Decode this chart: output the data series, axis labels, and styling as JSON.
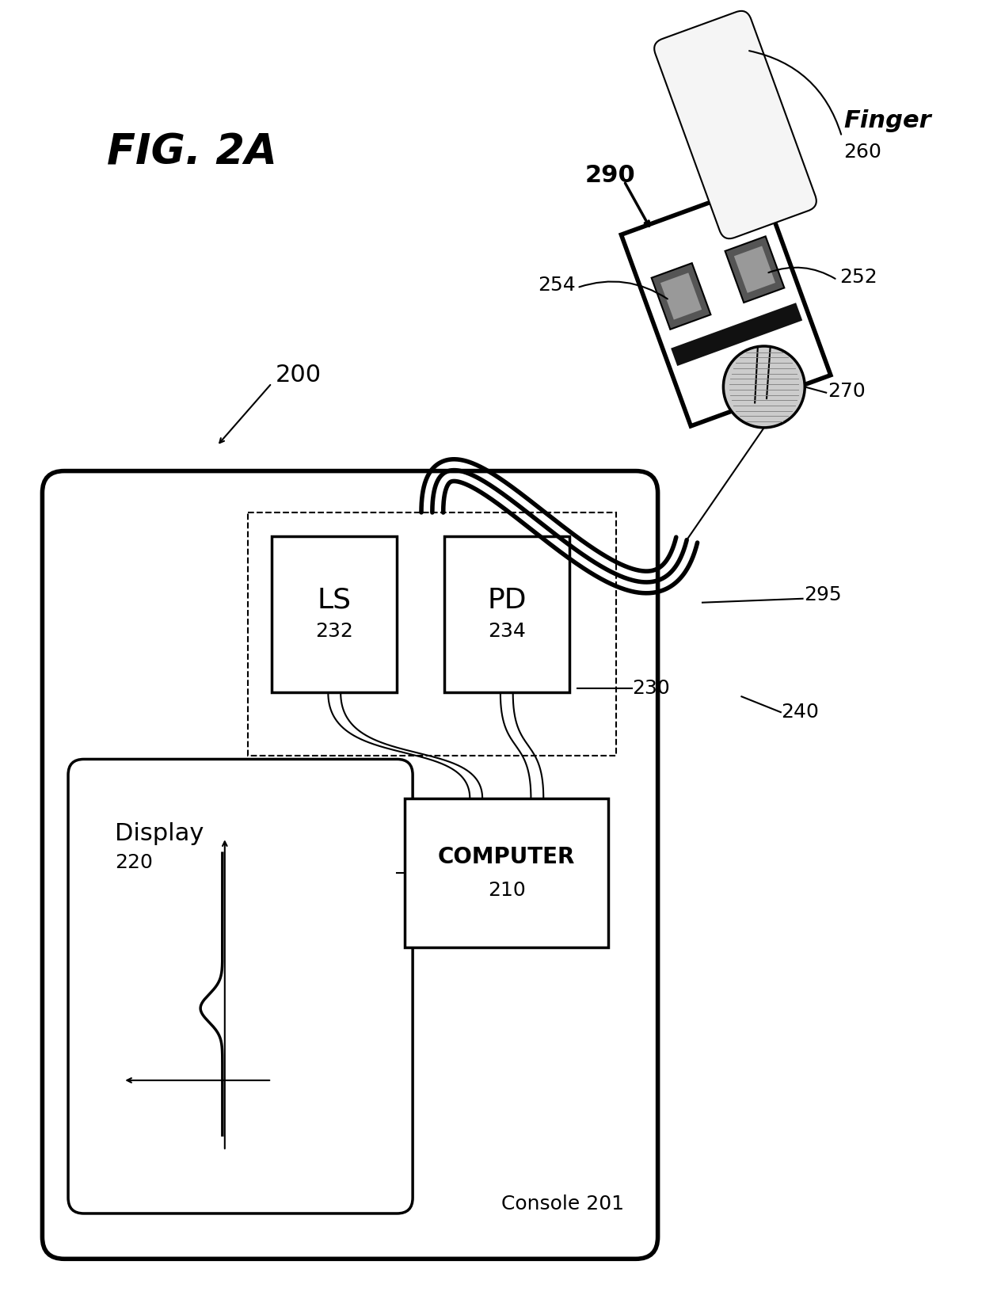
{
  "bg_color": "#ffffff",
  "line_color": "#000000",
  "fill_color": "#ffffff",
  "title": "FIG. 2A",
  "label_200": "200",
  "label_201": "Console 201",
  "label_210": "210",
  "label_220": "220",
  "label_230": "230",
  "label_232": "232",
  "label_234": "234",
  "label_240": "240",
  "label_252": "252",
  "label_254": "254",
  "label_260": "260",
  "label_270": "270",
  "label_290": "290",
  "label_295": "295",
  "label_finger": "Finger"
}
